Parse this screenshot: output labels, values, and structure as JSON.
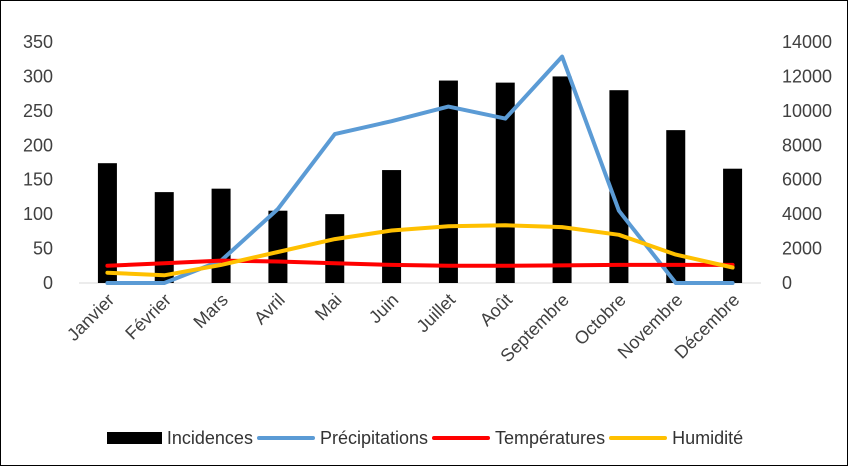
{
  "chart_data": {
    "type": "bar",
    "categories": [
      "Janvier",
      "Février",
      "Mars",
      "Avril",
      "Mai",
      "Juin",
      "Juillet",
      "Août",
      "Septembre",
      "Octobre",
      "Novembre",
      "Décembre"
    ],
    "left_axis": {
      "ylim": [
        0,
        350
      ],
      "ticks": [
        "0",
        "50",
        "100",
        "150",
        "200",
        "250",
        "300",
        "350"
      ]
    },
    "right_axis": {
      "ylim": [
        0,
        14000
      ],
      "ticks": [
        "0",
        "2000",
        "4000",
        "6000",
        "8000",
        "10000",
        "12000",
        "14000"
      ]
    },
    "series": [
      {
        "name": "Incidences",
        "type": "bar",
        "axis": "left",
        "color": "#000000",
        "values": [
          174,
          132,
          137,
          105,
          100,
          164,
          294,
          291,
          300,
          280,
          222,
          166
        ]
      },
      {
        "name": "Précipitations",
        "type": "line",
        "axis": "right",
        "color": "#5B9BD5",
        "values": [
          0,
          0,
          1300,
          4300,
          8650,
          9400,
          10250,
          9550,
          13150,
          4200,
          0,
          0
        ]
      },
      {
        "name": "Températures",
        "type": "line",
        "axis": "right",
        "color": "#FF0000",
        "values": [
          1000,
          1150,
          1300,
          1250,
          1150,
          1050,
          1000,
          1000,
          1020,
          1050,
          1050,
          1050
        ]
      },
      {
        "name": "Humidité",
        "type": "line",
        "axis": "right",
        "color": "#FFC000",
        "values": [
          600,
          450,
          1050,
          1800,
          2550,
          3050,
          3300,
          3350,
          3250,
          2800,
          1650,
          900
        ]
      }
    ],
    "grid": false,
    "legend_position": "bottom"
  },
  "legend": {
    "incidences": "Incidences",
    "precipitations": "Précipitations",
    "temperatures": "Températures",
    "humidite": "Humidité"
  }
}
